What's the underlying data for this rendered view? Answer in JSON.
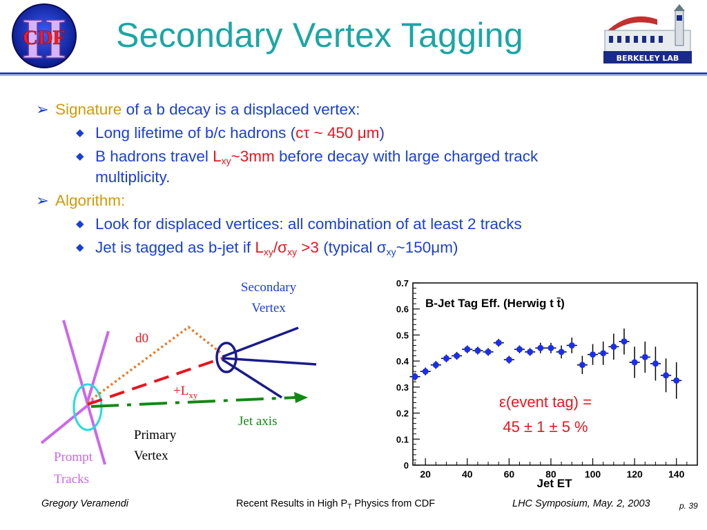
{
  "slide": {
    "title": "Secondary Vertex Tagging",
    "logos": {
      "cdf": {
        "text": "CDF",
        "numeral": "II"
      },
      "berkeley": {
        "text": "BERKELEY LAB"
      }
    }
  },
  "bullets": {
    "b1": {
      "marker": "➢",
      "lead": "Signature",
      "rest": " of a b decay is a displaced vertex:"
    },
    "b1_1": {
      "marker": "◆",
      "pre": "Long lifetime of b/c hadrons (",
      "highlight": "cτ ~ 450 μm",
      "post": ")"
    },
    "b1_2": {
      "marker": "◆",
      "pre": "B hadrons travel ",
      "L": "L",
      "xy": "xy",
      "tail": "~3mm",
      "post": " before decay with large charged track",
      "continuation": "multiplicity."
    },
    "b2": {
      "marker": "➢",
      "lead": "Algorithm:"
    },
    "b2_1": {
      "marker": "◆",
      "text": "Look for displaced vertices: all combination of at least 2 tracks"
    },
    "b2_2": {
      "marker": "◆",
      "pre": "Jet is tagged as b-jet if ",
      "L": "L",
      "xy1": "xy",
      "slash_sigma": "/σ",
      "xy2": "xy",
      "cond": " >3",
      "typ_pre": " (typical  σ",
      "xy3": "xy",
      "typ_post": "~150μm)"
    }
  },
  "diagram": {
    "secondary_vertex": [
      "Secondary",
      "Vertex"
    ],
    "d0": "d0",
    "lxy_plus": "+L",
    "lxy_sub": "xy",
    "jet_axis": "Jet axis",
    "primary_vertex": [
      "Primary",
      "Vertex"
    ],
    "prompt_tracks": [
      "Prompt",
      "Tracks"
    ],
    "colors": {
      "prompt": "#cc66ee",
      "primary_ellipse": "#22dddd",
      "sv_ellipse": "#1a1a8c",
      "d0_line": "#ee7722",
      "lxy_line": "#e8141e",
      "jet_axis": "#118811",
      "sv_tracks": "#1a1a8c"
    }
  },
  "chart_data": {
    "type": "scatter",
    "title": "B-Jet Tag Eff. (Herwig t t̄)",
    "xlabel": "Jet ET",
    "ylabel": "",
    "xlim": [
      14,
      150
    ],
    "ylim": [
      0,
      0.7
    ],
    "xticks": [
      20,
      40,
      60,
      80,
      100,
      120,
      140
    ],
    "yticks": [
      0,
      0.1,
      0.2,
      0.3,
      0.4,
      0.5,
      0.6,
      0.7
    ],
    "series": [
      {
        "x": [
          15,
          20,
          25,
          30,
          35,
          40,
          45,
          50,
          55,
          60,
          65,
          70,
          75,
          80,
          85,
          90,
          95,
          100,
          105,
          110,
          115,
          120,
          125,
          130,
          135,
          140
        ],
        "y": [
          0.34,
          0.36,
          0.385,
          0.41,
          0.42,
          0.445,
          0.44,
          0.435,
          0.47,
          0.405,
          0.445,
          0.435,
          0.45,
          0.45,
          0.435,
          0.46,
          0.385,
          0.425,
          0.43,
          0.455,
          0.475,
          0.395,
          0.415,
          0.39,
          0.345,
          0.325
        ],
        "yerr": [
          0.015,
          0.015,
          0.015,
          0.015,
          0.015,
          0.015,
          0.015,
          0.015,
          0.015,
          0.015,
          0.015,
          0.015,
          0.02,
          0.02,
          0.025,
          0.03,
          0.035,
          0.04,
          0.045,
          0.05,
          0.05,
          0.06,
          0.06,
          0.065,
          0.065,
          0.07
        ],
        "xerr": 2.5
      }
    ],
    "annotation": {
      "line1": "ε(event tag) =",
      "line2": "45 ± 1 ± 5 %"
    },
    "marker_color": "#1a2ef0"
  },
  "footer": {
    "author": "Gregory Veramendi",
    "talk_pre": "Recent Results in High P",
    "talk_sub": "T",
    "talk_post": " Physics from CDF",
    "venue": "LHC Symposium, May. 2, 2003",
    "page": "p. 39"
  }
}
